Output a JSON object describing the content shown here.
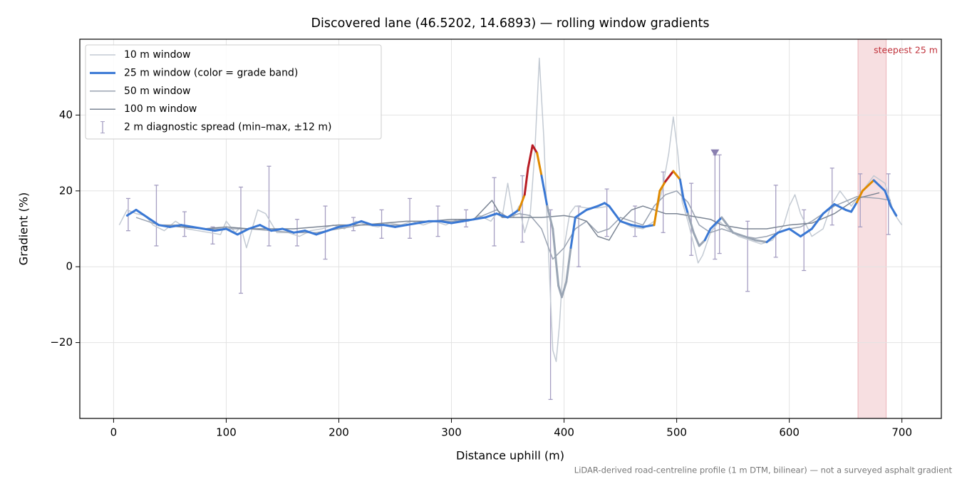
{
  "chart_data": {
    "type": "line",
    "title": "Discovered lane (46.5202, 14.6893) — rolling window gradients",
    "xlabel": "Distance uphill (m)",
    "ylabel": "Gradient (%)",
    "footnote": "LiDAR-derived road-centreline profile (1 m DTM, bilinear) — not a surveyed asphalt gradient",
    "xlim": [
      -30,
      735
    ],
    "ylim": [
      -40,
      60
    ],
    "xticks": [
      0,
      100,
      200,
      300,
      400,
      500,
      600,
      700
    ],
    "yticks": [
      {
        "value": -20,
        "label": "−20"
      },
      0,
      20,
      40
    ],
    "grid": true,
    "legend": "upper left",
    "series": [
      {
        "name": "10 m window",
        "color": "#c3cad3",
        "width": 1.5,
        "x": [
          5,
          12,
          20,
          28,
          35,
          45,
          55,
          65,
          75,
          85,
          95,
          100,
          108,
          113,
          118,
          122,
          128,
          135,
          145,
          155,
          165,
          175,
          185,
          195,
          205,
          215,
          225,
          235,
          245,
          255,
          265,
          275,
          285,
          295,
          305,
          315,
          325,
          335,
          340,
          345,
          350,
          355,
          360,
          365,
          370,
          374,
          378,
          382,
          386,
          390,
          393,
          396,
          400,
          405,
          410,
          420,
          430,
          440,
          450,
          460,
          470,
          480,
          487,
          493,
          497,
          501,
          505,
          510,
          515,
          519,
          523,
          530,
          538,
          545,
          555,
          565,
          575,
          585,
          595,
          600,
          605,
          610,
          620,
          630,
          637,
          645,
          655,
          665,
          675,
          685,
          693,
          700
        ],
        "values": [
          11,
          15,
          14,
          13.5,
          11,
          9.5,
          12,
          10,
          9.5,
          9,
          8.5,
          12,
          9,
          10.5,
          5,
          9,
          15,
          14,
          9,
          9,
          8,
          9.5,
          10,
          11,
          10,
          12,
          11,
          10.5,
          11.5,
          11,
          12,
          11,
          12,
          11,
          12.5,
          12,
          13.5,
          12,
          14,
          13,
          22,
          13,
          16,
          9,
          14,
          30,
          55,
          34,
          5,
          -22,
          -25,
          -15,
          5,
          14,
          16,
          15.5,
          15.5,
          16,
          12,
          10.5,
          10,
          12,
          20,
          30,
          39.5,
          30,
          17,
          12,
          6,
          1,
          3,
          9,
          12,
          10,
          8,
          7,
          6,
          7,
          11,
          16,
          19,
          14,
          8,
          10,
          16,
          20,
          16,
          20,
          24,
          22,
          14,
          11
        ]
      },
      {
        "name": "25 m window (color = grade band)",
        "color": "#3a78d4",
        "width": 3,
        "x": [
          12,
          20,
          30,
          40,
          50,
          60,
          70,
          80,
          90,
          100,
          110,
          120,
          130,
          140,
          150,
          160,
          170,
          180,
          190,
          200,
          210,
          220,
          230,
          240,
          250,
          260,
          270,
          280,
          290,
          300,
          310,
          320,
          330,
          340,
          350,
          360,
          365,
          368,
          372,
          376,
          380,
          385,
          390,
          395,
          398,
          402,
          406,
          410,
          420,
          430,
          436,
          440,
          450,
          460,
          470,
          480,
          485,
          490,
          497,
          503,
          506,
          510,
          515,
          520,
          525,
          530,
          540,
          545,
          550,
          560,
          570,
          580,
          590,
          600,
          610,
          620,
          630,
          640,
          650,
          655,
          660,
          665,
          675,
          685,
          690,
          695
        ],
        "values": [
          13.5,
          15,
          13,
          11,
          10.5,
          11,
          10.5,
          10,
          9.5,
          10,
          8.5,
          10,
          11,
          9.5,
          10,
          9,
          9.5,
          8.5,
          9.5,
          10.5,
          11,
          12,
          11,
          11,
          10.5,
          11,
          11.5,
          12,
          12,
          11.5,
          12,
          12.5,
          13,
          14,
          13,
          15,
          19,
          26,
          32,
          30,
          24,
          16,
          10,
          -5,
          -8,
          -4,
          5,
          13,
          15,
          16,
          16.8,
          16,
          12,
          11,
          10.5,
          11,
          20,
          22.5,
          25.2,
          23,
          18,
          14,
          9,
          5.5,
          7,
          10,
          13,
          11,
          9,
          8,
          7,
          6.5,
          9,
          10,
          8,
          10,
          14,
          16.5,
          15,
          14.5,
          17,
          20,
          22.8,
          20,
          16,
          13.5
        ],
        "colors": [
          "#3a78d4",
          "#3a78d4",
          "#3a78d4",
          "#3a78d4",
          "#3a78d4",
          "#3a78d4",
          "#3a78d4",
          "#3a78d4",
          "#3a78d4",
          "#3a78d4",
          "#3a78d4",
          "#3a78d4",
          "#3a78d4",
          "#3a78d4",
          "#3a78d4",
          "#3a78d4",
          "#3a78d4",
          "#3a78d4",
          "#3a78d4",
          "#3a78d4",
          "#3a78d4",
          "#3a78d4",
          "#3a78d4",
          "#3a78d4",
          "#3a78d4",
          "#3a78d4",
          "#3a78d4",
          "#3a78d4",
          "#3a78d4",
          "#3a78d4",
          "#3a78d4",
          "#3a78d4",
          "#3a78d4",
          "#3a78d4",
          "#3a78d4",
          "#3a78d4",
          "#e08a00",
          "#b81c24",
          "#b81c24",
          "#b81c24",
          "#e08a00",
          "#3a78d4",
          "#9aa5b4",
          "#9aa5b4",
          "#9aa5b4",
          "#9aa5b4",
          "#9aa5b4",
          "#3a78d4",
          "#3a78d4",
          "#3a78d4",
          "#3a78d4",
          "#3a78d4",
          "#3a78d4",
          "#3a78d4",
          "#3a78d4",
          "#3a78d4",
          "#e08a00",
          "#e08a00",
          "#b81c24",
          "#e08a00",
          "#3a78d4",
          "#3a78d4",
          "#9aa5b4",
          "#9aa5b4",
          "#9aa5b4",
          "#3a78d4",
          "#3a78d4",
          "#9aa5b4",
          "#9aa5b4",
          "#9aa5b4",
          "#9aa5b4",
          "#9aa5b4",
          "#3a78d4",
          "#3a78d4",
          "#3a78d4",
          "#3a78d4",
          "#3a78d4",
          "#3a78d4",
          "#3a78d4",
          "#3a78d4",
          "#3a78d4",
          "#e08a00",
          "#e08a00",
          "#3a78d4",
          "#3a78d4",
          "#3a78d4"
        ]
      },
      {
        "name": "50 m window",
        "color": "#9aa3b2",
        "width": 1.5,
        "x": [
          20,
          40,
          60,
          80,
          100,
          120,
          140,
          160,
          180,
          200,
          220,
          240,
          260,
          280,
          300,
          320,
          340,
          350,
          360,
          370,
          380,
          390,
          400,
          410,
          420,
          430,
          440,
          450,
          460,
          470,
          480,
          490,
          500,
          510,
          520,
          530,
          540,
          550,
          560,
          570,
          580,
          590,
          600,
          610,
          620,
          640,
          660,
          680,
          690
        ],
        "values": [
          13,
          11,
          11,
          10,
          10,
          10,
          9.5,
          9,
          9,
          10,
          11,
          11,
          11,
          12,
          12,
          12.5,
          15,
          13,
          14,
          13.5,
          10,
          2,
          5,
          10,
          12,
          9,
          10,
          13,
          12,
          11,
          16,
          19,
          20,
          17,
          11,
          9,
          10,
          9,
          8,
          7.5,
          8,
          9,
          10,
          10.5,
          12,
          16,
          18.5,
          18,
          17.5
        ]
      },
      {
        "name": "100 m window",
        "color": "#7b8594",
        "width": 1.5,
        "x": [
          40,
          60,
          80,
          100,
          120,
          140,
          160,
          180,
          200,
          220,
          240,
          260,
          280,
          300,
          320,
          336,
          345,
          360,
          380,
          400,
          410,
          420,
          430,
          440,
          450,
          460,
          470,
          480,
          490,
          500,
          510,
          520,
          530,
          540,
          560,
          580,
          600,
          620,
          640,
          660,
          680
        ],
        "values": [
          11,
          10.5,
          10,
          10.5,
          10,
          10,
          10,
          10.5,
          11,
          11,
          11.5,
          12,
          12,
          12.5,
          12.5,
          17.5,
          13,
          13,
          13,
          13.5,
          13,
          12,
          8,
          7,
          12,
          15,
          16,
          15,
          14,
          14,
          13.5,
          13,
          12.5,
          11,
          10,
          10,
          11,
          11.5,
          14,
          18,
          19.5
        ]
      }
    ],
    "errorbars": {
      "name": "2 m diagnostic spread (min–max, ±12 m)",
      "color": "#a59ec2",
      "x": [
        13,
        38,
        63,
        88,
        113,
        138,
        163,
        188,
        213,
        238,
        263,
        288,
        313,
        338,
        363,
        388,
        413,
        438,
        463,
        488,
        513,
        534,
        538,
        563,
        588,
        613,
        638,
        663,
        688
      ],
      "low": [
        9.5,
        5.5,
        8,
        6,
        -7,
        5.5,
        5.5,
        2,
        9.5,
        7.5,
        7.5,
        8,
        10.5,
        5.5,
        6.5,
        -35,
        0,
        8,
        8,
        9,
        3,
        2,
        3.5,
        -6.5,
        2.5,
        -1,
        11,
        10.5,
        8.5
      ],
      "high": [
        18,
        21.5,
        14.5,
        10.5,
        21,
        26.5,
        12.5,
        16,
        13,
        15,
        18,
        16,
        15,
        23.5,
        24,
        15,
        16,
        20.5,
        16,
        25,
        22,
        29.5,
        29.5,
        12,
        21.5,
        15,
        26,
        24.5,
        24.5
      ]
    },
    "marker": {
      "x": 534,
      "y": 30,
      "color": "#8a7fb0"
    },
    "span": {
      "x": [
        661,
        686
      ],
      "color": "#e8a3aa",
      "label": "steepest 25 m",
      "label_color": "#c0313a"
    }
  }
}
